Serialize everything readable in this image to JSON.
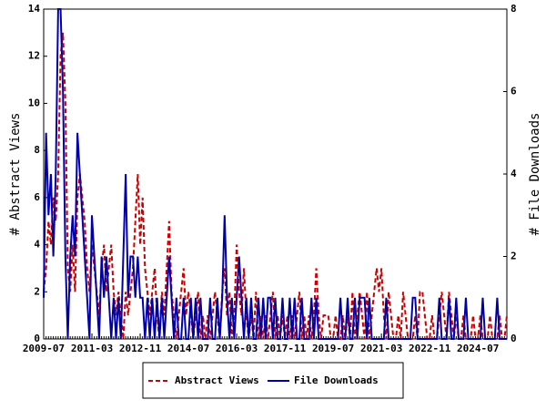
{
  "chart_data": {
    "type": "line",
    "categories": [
      "2009-07",
      null,
      null,
      null,
      null,
      null,
      null,
      null,
      null,
      null,
      null,
      null,
      null,
      null,
      null,
      null,
      null,
      null,
      null,
      null,
      "2011-03",
      null,
      null,
      null,
      null,
      null,
      null,
      null,
      null,
      null,
      null,
      null,
      null,
      null,
      null,
      null,
      null,
      null,
      null,
      null,
      "2012-11",
      null,
      null,
      null,
      null,
      null,
      null,
      null,
      null,
      null,
      null,
      null,
      null,
      null,
      null,
      null,
      null,
      null,
      null,
      null,
      "2014-07",
      null,
      null,
      null,
      null,
      null,
      null,
      null,
      null,
      null,
      null,
      null,
      null,
      null,
      null,
      null,
      null,
      null,
      null,
      null,
      "2016-03",
      null,
      null,
      null,
      null,
      null,
      null,
      null,
      null,
      null,
      null,
      null,
      null,
      null,
      null,
      null,
      null,
      null,
      null,
      null,
      "2017-11",
      null,
      null,
      null,
      null,
      null,
      null,
      null,
      null,
      null,
      null,
      null,
      null,
      null,
      null,
      null,
      null,
      null,
      null,
      null,
      "2019-07",
      null,
      null,
      null,
      null,
      null,
      null,
      null,
      null,
      null,
      null,
      null,
      null,
      null,
      null,
      null,
      null,
      null,
      null,
      null,
      "2021-03",
      null,
      null,
      null,
      null,
      null,
      null,
      null,
      null,
      null,
      null,
      null,
      null,
      null,
      null,
      null,
      null,
      null,
      null,
      null,
      "2022-11",
      null,
      null,
      null,
      null,
      null,
      null,
      null,
      null,
      null,
      null,
      null,
      null,
      null,
      null,
      null,
      null,
      null,
      null,
      null,
      "2024-07",
      null,
      null,
      null,
      null,
      null,
      null,
      null,
      null,
      null,
      null,
      null,
      null
    ],
    "series": [
      {
        "name": "Abstract Views",
        "color": "#cc0000",
        "dashed": true,
        "values": [
          2,
          3,
          5,
          4,
          6,
          5,
          7,
          12,
          13,
          10,
          3,
          2,
          4,
          2,
          6,
          7,
          6,
          5,
          3,
          2,
          4,
          3,
          2,
          1,
          3,
          4,
          2,
          3,
          4,
          2,
          1,
          2,
          1,
          0,
          2,
          1,
          2,
          3,
          5,
          7,
          4,
          6,
          3,
          2,
          1,
          2,
          3,
          1,
          0,
          2,
          1,
          3,
          5,
          2,
          1,
          0,
          1,
          2,
          3,
          1,
          2,
          1,
          0,
          1,
          2,
          0,
          1,
          0,
          1,
          0,
          1,
          2,
          1,
          0,
          2,
          3,
          1,
          2,
          0,
          1,
          4,
          2,
          1,
          3,
          1,
          0,
          1,
          0,
          2,
          0,
          1,
          0,
          1,
          0,
          1,
          2,
          0,
          1,
          0,
          1,
          0,
          1,
          0,
          1,
          0,
          1,
          2,
          0,
          1,
          0,
          1,
          0,
          1,
          3,
          1,
          0,
          1,
          1,
          1,
          0,
          0,
          1,
          0,
          0,
          1,
          0,
          1,
          0,
          2,
          0,
          1,
          2,
          1,
          0,
          2,
          0,
          1,
          2,
          3,
          2,
          3,
          1,
          0,
          2,
          1,
          0,
          0,
          1,
          0,
          2,
          1,
          0,
          0,
          0,
          1,
          0,
          2,
          2,
          1,
          0,
          0,
          1,
          0,
          0,
          1,
          2,
          1,
          0,
          2,
          1,
          0,
          1,
          0,
          0,
          1,
          0,
          0,
          0,
          1,
          0,
          0,
          1,
          0,
          0,
          0,
          1,
          0,
          0,
          0,
          1,
          0,
          0,
          1
        ]
      },
      {
        "name": "File Downloads",
        "color": "#0000aa",
        "dashed": false,
        "axis": "y2",
        "values": [
          1,
          5,
          3,
          4,
          2,
          4,
          8,
          8,
          6,
          2,
          0,
          2,
          3,
          2,
          5,
          4,
          3,
          2,
          1,
          0,
          3,
          2,
          1,
          0,
          2,
          1,
          2,
          1,
          0,
          1,
          0,
          1,
          0,
          2,
          4,
          1,
          2,
          2,
          1,
          2,
          1,
          1,
          0,
          1,
          0,
          1,
          0,
          1,
          0,
          1,
          0,
          1,
          2,
          1,
          0,
          1,
          0,
          0,
          1,
          0,
          0,
          1,
          0,
          1,
          0,
          1,
          0,
          0,
          0,
          1,
          0,
          0,
          1,
          0,
          1,
          3,
          1,
          0,
          1,
          0,
          1,
          2,
          1,
          0,
          1,
          0,
          1,
          0,
          0,
          1,
          0,
          1,
          0,
          1,
          1,
          0,
          1,
          0,
          0,
          1,
          0,
          0,
          1,
          0,
          1,
          0,
          0,
          1,
          0,
          0,
          0,
          1,
          0,
          1,
          0,
          0,
          0,
          0,
          0,
          0,
          0,
          0,
          0,
          1,
          0,
          0,
          1,
          0,
          0,
          1,
          0,
          1,
          1,
          1,
          0,
          1,
          0,
          0,
          0,
          0,
          0,
          0,
          1,
          0,
          0,
          0,
          0,
          0,
          0,
          0,
          0,
          0,
          0,
          1,
          1,
          0,
          0,
          0,
          0,
          0,
          0,
          0,
          0,
          0,
          1,
          0,
          0,
          0,
          1,
          0,
          0,
          1,
          0,
          0,
          0,
          1,
          0,
          0,
          0,
          0,
          0,
          0,
          1,
          0,
          0,
          0,
          0,
          0,
          1,
          0,
          0,
          0,
          0
        ]
      }
    ],
    "y_label": "# Abstract Views",
    "y2_label": "# File Downloads",
    "ylim": [
      0,
      14
    ],
    "yticks": [
      0,
      2,
      4,
      6,
      8,
      10,
      12,
      14
    ],
    "y2lim": [
      0,
      8
    ],
    "y2ticks": [
      0,
      2,
      4,
      6,
      8
    ],
    "legend": "bottom"
  }
}
